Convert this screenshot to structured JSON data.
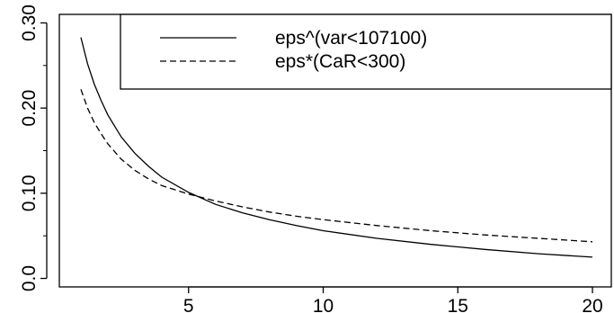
{
  "chart_data": {
    "type": "line",
    "title": "",
    "xlabel": "",
    "ylabel": "",
    "xlim": [
      0.2,
      20.7
    ],
    "ylim": [
      -0.01,
      0.31
    ],
    "x_ticks": [
      5,
      10,
      15,
      20
    ],
    "x_tick_labels": [
      "5",
      "10",
      "15",
      "20"
    ],
    "y_ticks": [
      0.0,
      0.1,
      0.2,
      0.3
    ],
    "y_tick_labels": [
      "0.0",
      "0.10",
      "0.20",
      "0.30"
    ],
    "y_minor_ticks": [
      0.05,
      0.15,
      0.25
    ],
    "grid": false,
    "legend_position": "top-right",
    "series": [
      {
        "name": "eps^(var<107100)",
        "line_style": "solid",
        "color": "#000000",
        "x": [
          1,
          1.25,
          1.5,
          1.75,
          2,
          2.5,
          3,
          3.5,
          4,
          5,
          6,
          7,
          8,
          9,
          10,
          12,
          14,
          16,
          18,
          20
        ],
        "y": [
          0.283,
          0.252,
          0.228,
          0.209,
          0.192,
          0.166,
          0.147,
          0.132,
          0.119,
          0.101,
          0.087,
          0.077,
          0.069,
          0.062,
          0.056,
          0.047,
          0.04,
          0.034,
          0.029,
          0.025
        ]
      },
      {
        "name": "eps*(CaR<300)",
        "line_style": "dashed",
        "color": "#000000",
        "x": [
          1,
          1.25,
          1.5,
          1.75,
          2,
          2.5,
          3,
          3.5,
          4,
          5,
          6,
          7,
          8,
          9,
          10,
          12,
          14,
          16,
          18,
          20
        ],
        "y": [
          0.222,
          0.2,
          0.183,
          0.17,
          0.158,
          0.14,
          0.127,
          0.117,
          0.109,
          0.099,
          0.091,
          0.084,
          0.078,
          0.073,
          0.069,
          0.062,
          0.056,
          0.051,
          0.047,
          0.043
        ]
      }
    ]
  }
}
